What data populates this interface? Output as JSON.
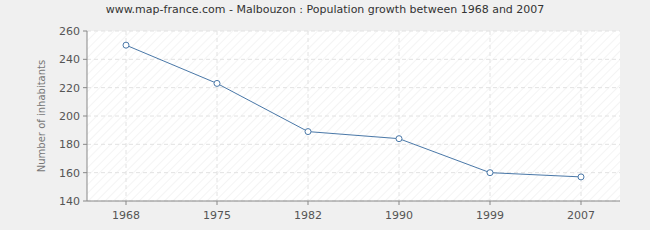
{
  "chart_data": {
    "type": "line",
    "title": "www.map-france.com - Malbouzon : Population growth between 1968 and 2007",
    "y_label": "Number of inhabitants",
    "categories": [
      "1968",
      "1975",
      "1982",
      "1990",
      "1999",
      "2007"
    ],
    "series": [
      {
        "name": "Population",
        "color": "#4a78a8",
        "values": [
          250,
          223,
          189,
          184,
          160,
          157
        ],
        "marker": "circle"
      }
    ],
    "ylim": [
      140,
      260
    ],
    "yticks": [
      140,
      160,
      180,
      200,
      220,
      240,
      260
    ],
    "grid": true
  }
}
